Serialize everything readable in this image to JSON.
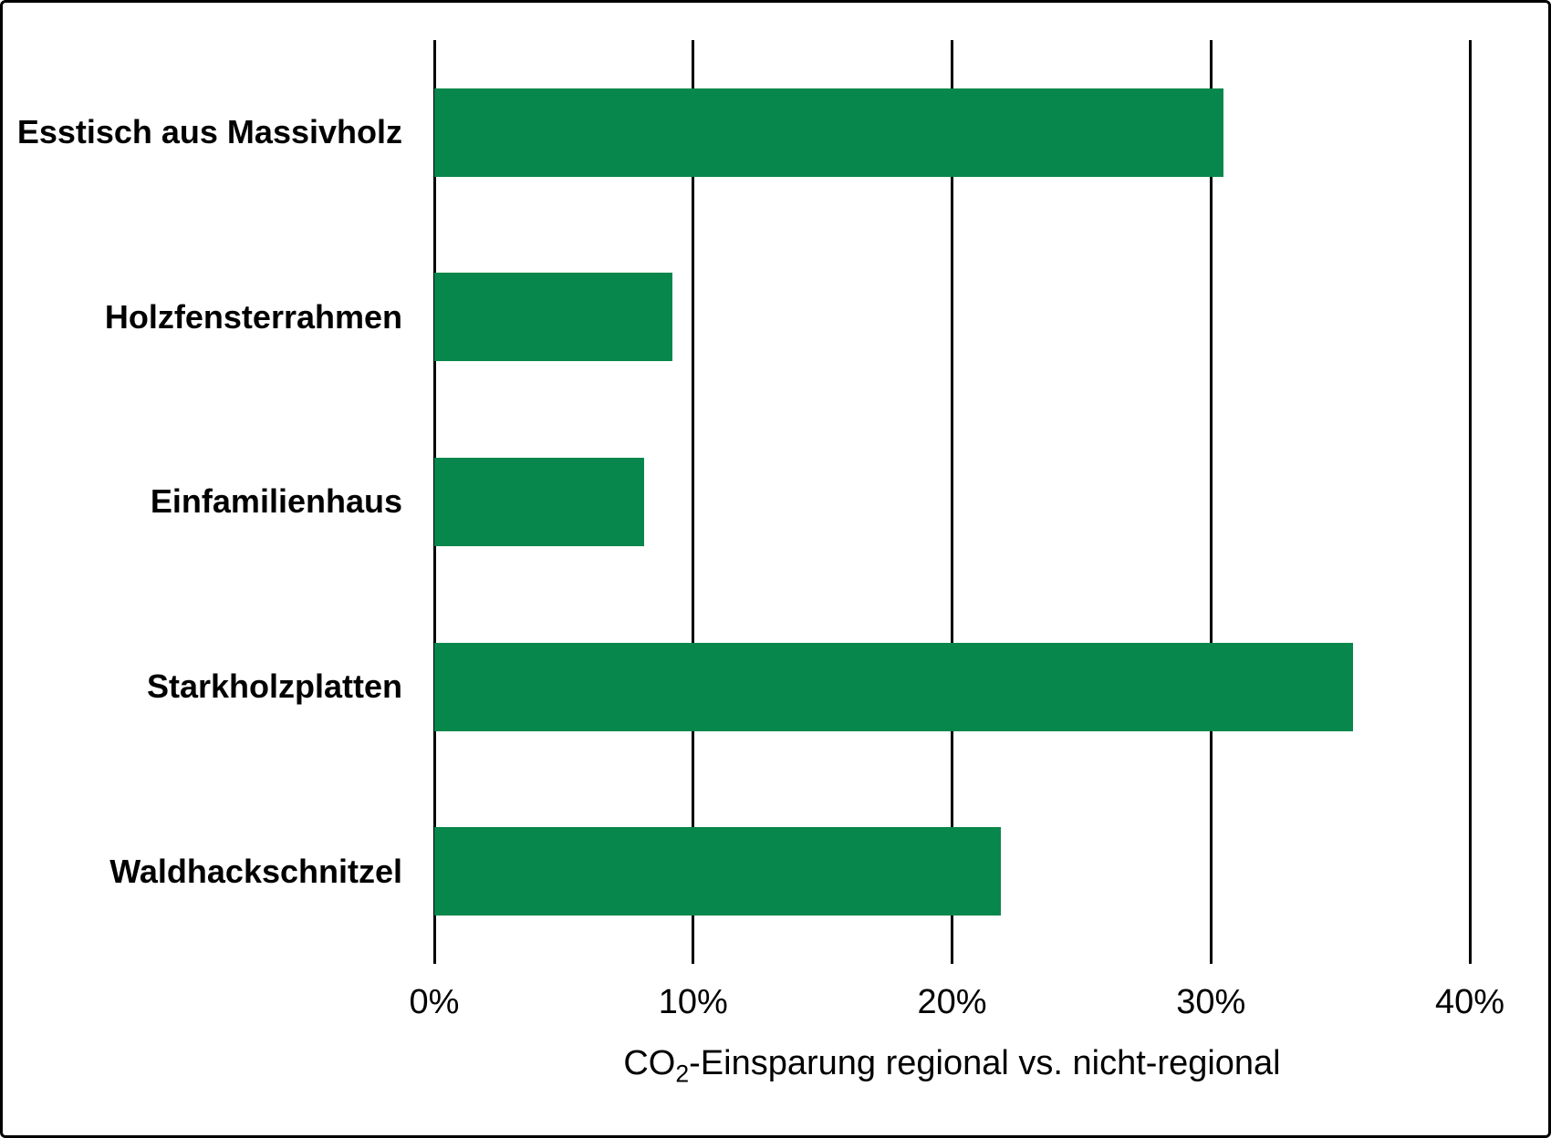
{
  "style": {
    "bar_color": "#07874B",
    "grid_color": "#000000",
    "text_color": "#000000",
    "background_color": "#ffffff",
    "border_color": "#000000"
  },
  "chart_data": {
    "type": "bar",
    "orientation": "horizontal",
    "title": "",
    "categories": [
      "Esstisch aus Massivholz",
      "Holzfensterrahmen",
      "Einfamilienhaus",
      "Starkholzplatten",
      "Waldhackschnitzel"
    ],
    "values": [
      30.5,
      9.2,
      8.1,
      35.5,
      21.9
    ],
    "value_unit": "%",
    "xlim": [
      0,
      40
    ],
    "x_ticks": [
      {
        "value": 0,
        "label": "0%"
      },
      {
        "value": 10,
        "label": "10%"
      },
      {
        "value": 20,
        "label": "20%"
      },
      {
        "value": 30,
        "label": "30%"
      },
      {
        "value": 40,
        "label": "40%"
      }
    ],
    "xlabel": {
      "prefix": "CO",
      "sub": "2",
      "rest": "-Einsparung regional vs. nicht-regional"
    },
    "ylabel": "",
    "legend": null,
    "grid": "vertical-full-height",
    "tick_marks": "extend-below-plot"
  }
}
